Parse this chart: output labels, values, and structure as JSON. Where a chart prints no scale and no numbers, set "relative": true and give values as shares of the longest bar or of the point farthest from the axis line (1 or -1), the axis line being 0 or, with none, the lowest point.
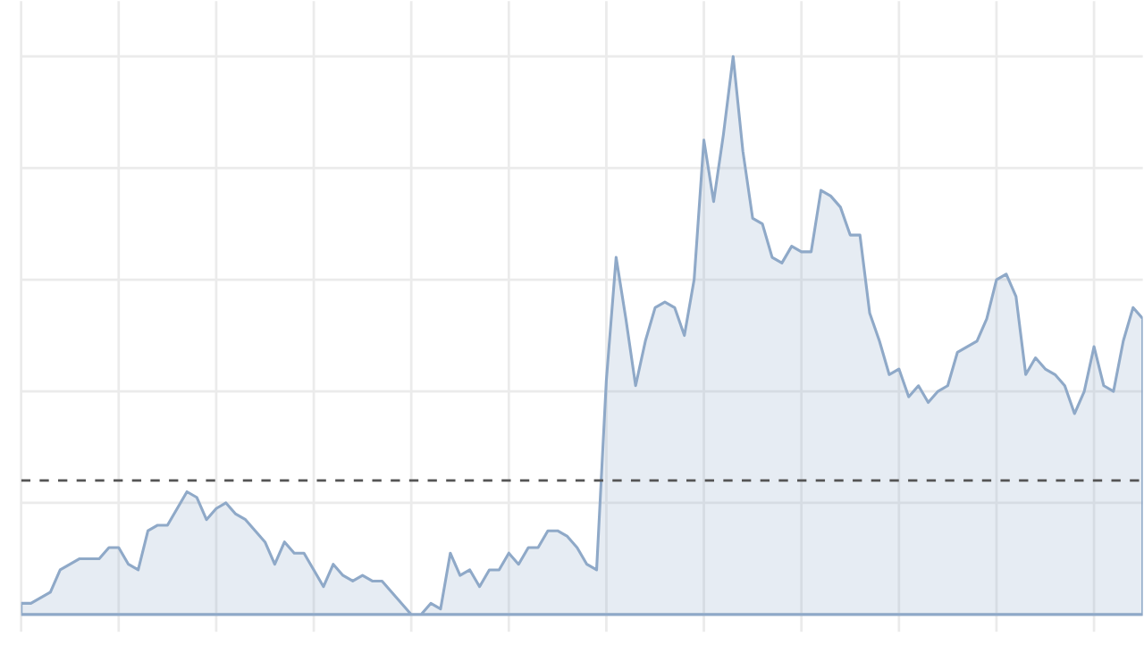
{
  "chart_data": {
    "type": "area",
    "relative": true,
    "grid": true,
    "categories": [
      null,
      null,
      null,
      null,
      null,
      null,
      null,
      null,
      null,
      null,
      null,
      null,
      null,
      null,
      null,
      null,
      null,
      null,
      null,
      null,
      null,
      null,
      null,
      null,
      null,
      null,
      null,
      null,
      null,
      null,
      null,
      null,
      null,
      null,
      null,
      null,
      null,
      null,
      null,
      null,
      null,
      null,
      null,
      null,
      null,
      null,
      null,
      null,
      null,
      null,
      null,
      null,
      null,
      null,
      null,
      null,
      null,
      null,
      null,
      null,
      null,
      null,
      null,
      null,
      null,
      null,
      null,
      null,
      null,
      null,
      null,
      null,
      null,
      null,
      null,
      null,
      null,
      null,
      null,
      null,
      null,
      null,
      null,
      null,
      null,
      null,
      null,
      null,
      null,
      null,
      null,
      null,
      null,
      null,
      null,
      null,
      null,
      null,
      null,
      null,
      null,
      null,
      null,
      null,
      null,
      null,
      null,
      null,
      null,
      null,
      null,
      null,
      null,
      null,
      null,
      null
    ],
    "series": [
      {
        "color": "#8fa9c8",
        "values": [
          0.02,
          0.02,
          0.03,
          0.04,
          0.08,
          0.09,
          0.1,
          0.1,
          0.1,
          0.12,
          0.12,
          0.09,
          0.08,
          0.15,
          0.16,
          0.16,
          0.19,
          0.22,
          0.21,
          0.17,
          0.19,
          0.2,
          0.18,
          0.17,
          0.15,
          0.13,
          0.09,
          0.13,
          0.11,
          0.11,
          0.08,
          0.05,
          0.09,
          0.07,
          0.06,
          0.07,
          0.06,
          0.06,
          0.04,
          0.02,
          0,
          0,
          0.02,
          0.01,
          0.11,
          0.07,
          0.08,
          0.05,
          0.08,
          0.08,
          0.11,
          0.09,
          0.12,
          0.12,
          0.15,
          0.15,
          0.14,
          0.12,
          0.09,
          0.08,
          0.42,
          0.64,
          0.53,
          0.41,
          0.49,
          0.55,
          0.56,
          0.55,
          0.5,
          0.6,
          0.85,
          0.74,
          0.86,
          1,
          0.83,
          0.71,
          0.7,
          0.64,
          0.63,
          0.66,
          0.65,
          0.65,
          0.76,
          0.75,
          0.73,
          0.68,
          0.68,
          0.54,
          0.49,
          0.43,
          0.44,
          0.39,
          0.41,
          0.38,
          0.4,
          0.41,
          0.47,
          0.48,
          0.49,
          0.53,
          0.6,
          0.61,
          0.57,
          0.43,
          0.46,
          0.44,
          0.43,
          0.41,
          0.36,
          0.4,
          0.48,
          0.41,
          0.4,
          0.49,
          0.55,
          0.53
        ]
      }
    ],
    "ref_lines": [
      {
        "axis": "y",
        "value": 0.24,
        "color": "#555555",
        "line_style": "dashed"
      }
    ]
  }
}
